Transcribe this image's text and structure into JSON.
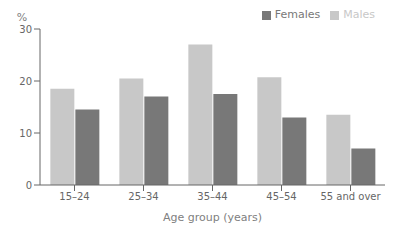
{
  "chart_data": {
    "type": "bar",
    "categories": [
      "15–24",
      "25–34",
      "35–44",
      "45–54",
      "55 and over"
    ],
    "series": [
      {
        "name": "Males",
        "color": "#c8c8c8",
        "values": [
          18.5,
          20.5,
          27.0,
          20.7,
          13.5
        ]
      },
      {
        "name": "Females",
        "color": "#787878",
        "values": [
          14.5,
          17.0,
          17.5,
          13.0,
          7.0
        ]
      }
    ],
    "ylim": [
      0,
      30
    ],
    "yticks": [
      0,
      10,
      20,
      30
    ],
    "ylabel": "%",
    "xlabel": "Age group (years)",
    "legend": "upper right",
    "grid": false
  }
}
